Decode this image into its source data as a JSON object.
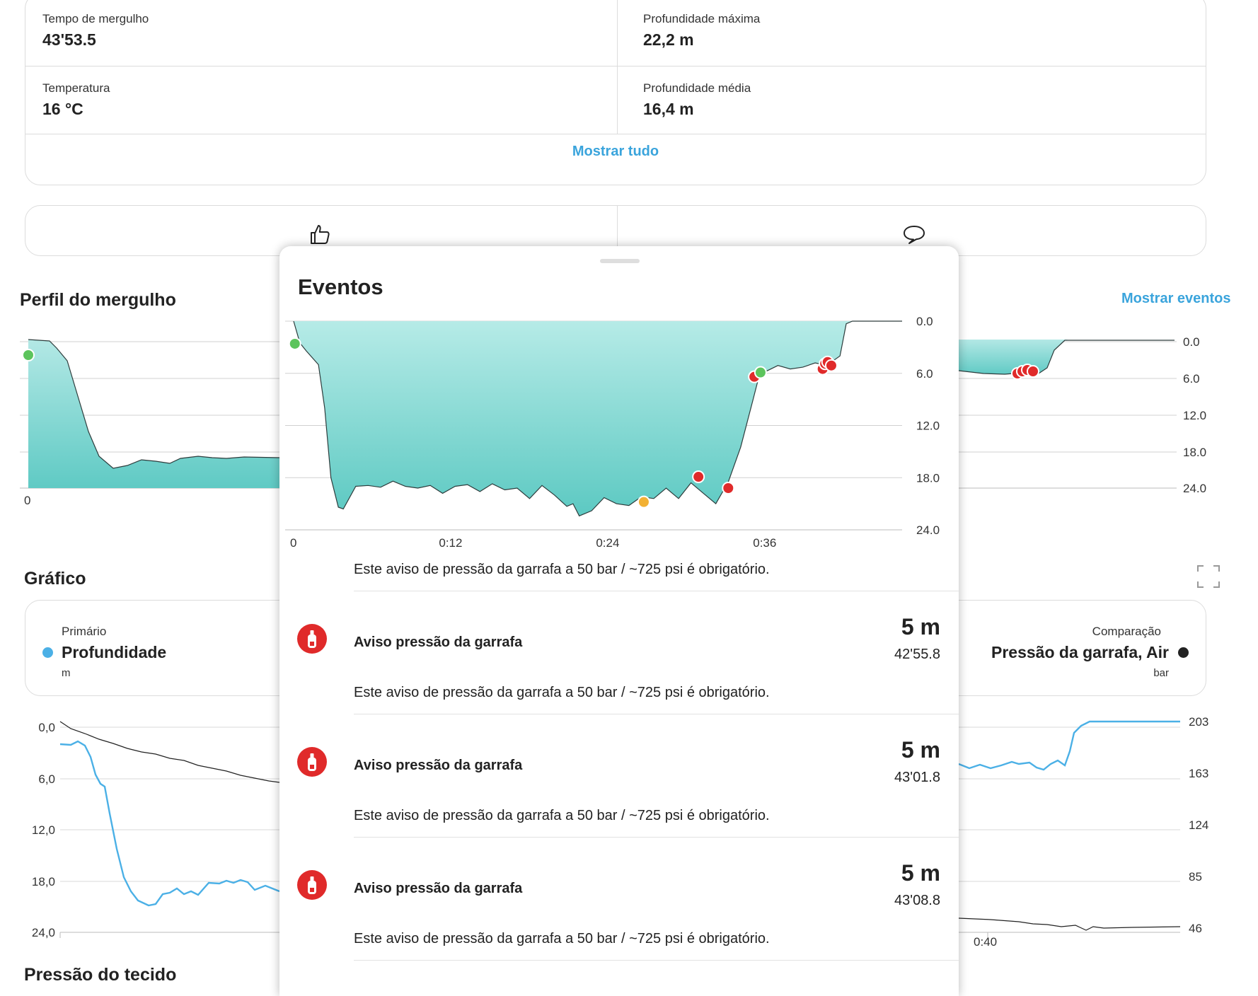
{
  "stats": {
    "dive_time": {
      "label": "Tempo de mergulho",
      "value": "43'53.5"
    },
    "max_depth": {
      "label": "Profundidade máxima",
      "value": "22,2 m"
    },
    "temperature": {
      "label": "Temperatura",
      "value": "16 °C"
    },
    "avg_depth": {
      "label": "Profundidade média",
      "value": "16,4 m"
    },
    "show_all": "Mostrar tudo"
  },
  "social": {
    "like_icon": "thumbs-up-icon",
    "comment_icon": "comment-bubble-icon"
  },
  "profile": {
    "title": "Perfil do mergulho",
    "show_events": "Mostrar eventos",
    "x_labels": [
      "0"
    ],
    "y_labels": [
      "0.0",
      "6.0",
      "12.0",
      "18.0",
      "24.0"
    ]
  },
  "graph": {
    "title": "Gráfico",
    "fullscreen_icon": "expand-icon",
    "primary": {
      "caption": "Primário",
      "name": "Profundidade",
      "unit": "m",
      "color": "#4bb0e6"
    },
    "comparison": {
      "caption": "Comparação",
      "name": "Pressão da garrafa, Air",
      "unit": "bar",
      "color": "#222222"
    },
    "left_axis": [
      "0,0",
      "6,0",
      "12,0",
      "18,0",
      "24,0"
    ],
    "right_axis": [
      "203",
      "163",
      "124",
      "85",
      "46"
    ],
    "x_labels": [
      "0:40"
    ]
  },
  "next_section_title": "Pressão do tecido",
  "sheet": {
    "title": "Eventos",
    "chart_data": {
      "type": "area",
      "x_labels": [
        "0",
        "0:12",
        "0:24",
        "0:36"
      ],
      "y_labels": [
        "0.0",
        "6.0",
        "12.0",
        "18.0",
        "24.0"
      ],
      "ylim": [
        0,
        24
      ],
      "xlim": [
        0,
        49
      ],
      "y_inverted": true,
      "depth": [
        [
          0,
          0
        ],
        [
          0.5,
          2.5
        ],
        [
          1,
          3.4
        ],
        [
          2,
          5
        ],
        [
          2.5,
          10
        ],
        [
          3,
          18
        ],
        [
          3.6,
          21.4
        ],
        [
          4,
          21.6
        ],
        [
          5,
          19
        ],
        [
          6,
          18.9
        ],
        [
          7,
          19.1
        ],
        [
          8,
          18.4
        ],
        [
          9,
          19
        ],
        [
          10,
          19.2
        ],
        [
          11,
          18.9
        ],
        [
          12,
          19.8
        ],
        [
          13,
          19
        ],
        [
          14,
          18.8
        ],
        [
          15,
          19.6
        ],
        [
          16,
          18.7
        ],
        [
          17,
          19.4
        ],
        [
          18,
          19.2
        ],
        [
          19,
          20.4
        ],
        [
          20,
          18.9
        ],
        [
          21,
          20
        ],
        [
          22,
          21.3
        ],
        [
          22.5,
          21
        ],
        [
          23,
          22.4
        ],
        [
          24,
          21.8
        ],
        [
          25,
          20.3
        ],
        [
          26,
          21
        ],
        [
          27,
          21.2
        ],
        [
          28,
          20.2
        ],
        [
          29,
          20.4
        ],
        [
          30,
          19.2
        ],
        [
          31,
          20.4
        ],
        [
          32,
          18.6
        ],
        [
          33,
          19.8
        ],
        [
          34,
          21
        ],
        [
          35,
          18.5
        ],
        [
          36,
          14.5
        ],
        [
          37,
          9
        ],
        [
          37.5,
          6.2
        ],
        [
          38,
          5.8
        ],
        [
          39,
          5.1
        ],
        [
          40,
          5.5
        ],
        [
          41,
          5.3
        ],
        [
          42,
          4.8
        ],
        [
          43,
          5.1
        ],
        [
          43.5,
          4.5
        ],
        [
          44,
          4
        ],
        [
          44.5,
          0.3
        ],
        [
          45,
          0
        ],
        [
          49,
          0
        ]
      ],
      "events": [
        {
          "type": "start",
          "x": 0.1,
          "y": 2.6,
          "color": "#5cc45c"
        },
        {
          "type": "warning",
          "x": 37.1,
          "y": 6.4,
          "color": "#e02a2a"
        },
        {
          "type": "info",
          "x": 37.6,
          "y": 5.9,
          "color": "#5cc45c"
        },
        {
          "type": "warning",
          "x": 42.6,
          "y": 5.5,
          "color": "#e02a2a"
        },
        {
          "type": "warning",
          "x": 42.8,
          "y": 4.9,
          "color": "#e02a2a"
        },
        {
          "type": "warning",
          "x": 43.0,
          "y": 4.7,
          "color": "#e02a2a"
        },
        {
          "type": "warning",
          "x": 43.3,
          "y": 5.1,
          "color": "#e02a2a"
        },
        {
          "type": "warning",
          "x": 32.6,
          "y": 17.9,
          "color": "#e02a2a"
        },
        {
          "type": "warning",
          "x": 35.0,
          "y": 19.2,
          "color": "#e02a2a"
        },
        {
          "type": "caution",
          "x": 28.2,
          "y": 20.8,
          "color": "#f2b134"
        }
      ]
    },
    "top_description": "Este aviso de pressão da garrafa a 50 bar / ~725 psi é obrigatório.",
    "events": [
      {
        "icon": "tank-pressure-icon",
        "name": "Aviso pressão da garrafa",
        "depth": "5 m",
        "time": "42'55.8",
        "description": "Este aviso de pressão da garrafa a 50 bar / ~725 psi é obrigatório."
      },
      {
        "icon": "tank-pressure-icon",
        "name": "Aviso pressão da garrafa",
        "depth": "5 m",
        "time": "43'01.8",
        "description": "Este aviso de pressão da garrafa a 50 bar / ~725 psi é obrigatório."
      },
      {
        "icon": "tank-pressure-icon",
        "name": "Aviso pressão da garrafa",
        "depth": "5 m",
        "time": "43'08.8",
        "description": "Este aviso de pressão da garrafa a 50 bar / ~725 psi é obrigatório."
      }
    ]
  }
}
